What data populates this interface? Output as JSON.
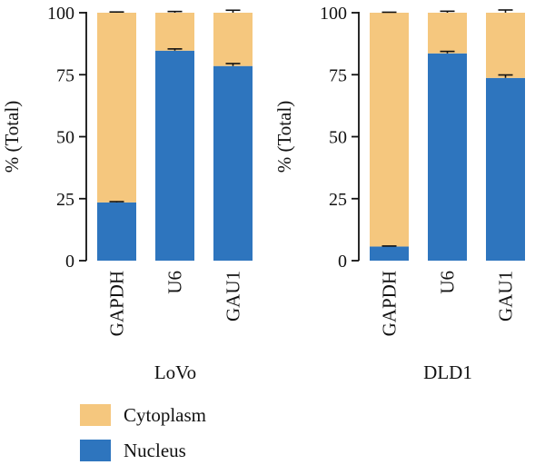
{
  "legend": [
    {
      "label": "Cytoplasm",
      "color": "#F5C77E"
    },
    {
      "label": "Nucleus",
      "color": "#2E75BE"
    }
  ],
  "chart_data": [
    {
      "type": "bar",
      "stacked": true,
      "title": "LoVo",
      "ylabel": "% (Total)",
      "ylim": [
        0,
        100
      ],
      "yticks": [
        0,
        25,
        50,
        75,
        100
      ],
      "categories": [
        "GAPDH",
        "U6",
        "GAU1"
      ],
      "series": [
        {
          "name": "Nucleus",
          "color": "#2E75BE",
          "values": [
            23.5,
            84.7,
            78.5
          ],
          "error": [
            0.3,
            0.7,
            1.0
          ]
        },
        {
          "name": "Cytoplasm",
          "color": "#F5C77E",
          "values": [
            76.5,
            15.3,
            21.5
          ],
          "error": [
            0.3,
            0.5,
            1.0
          ]
        }
      ]
    },
    {
      "type": "bar",
      "stacked": true,
      "title": "DLD1",
      "ylabel": "% (Total)",
      "ylim": [
        0,
        100
      ],
      "yticks": [
        0,
        25,
        50,
        75,
        100
      ],
      "categories": [
        "GAPDH",
        "U6",
        "GAU1"
      ],
      "series": [
        {
          "name": "Nucleus",
          "color": "#2E75BE",
          "values": [
            5.7,
            83.6,
            73.7
          ],
          "error": [
            0.2,
            0.8,
            1.2
          ]
        },
        {
          "name": "Cytoplasm",
          "color": "#F5C77E",
          "values": [
            94.3,
            16.4,
            26.3
          ],
          "error": [
            0.2,
            0.6,
            1.1
          ]
        }
      ]
    }
  ]
}
